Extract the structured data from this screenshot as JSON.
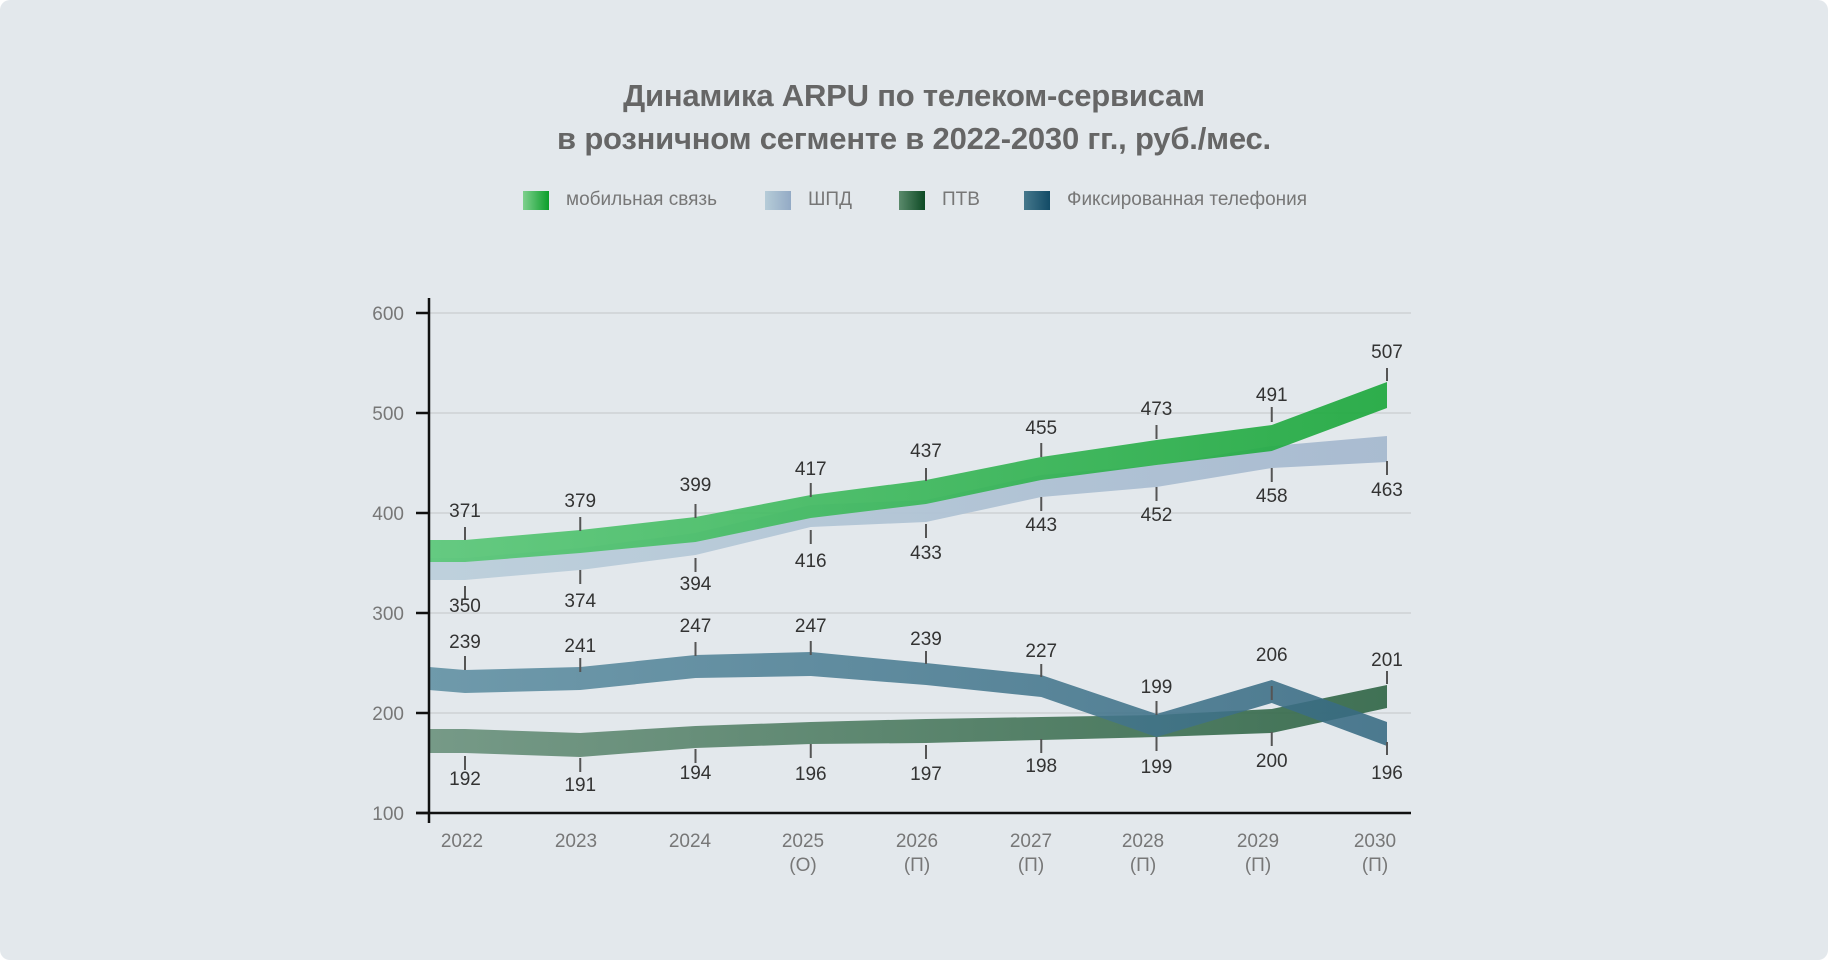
{
  "chart_data": {
    "type": "line",
    "title": "Динамика ARPU по телеком-сервисам\nв розничном сегменте в 2022-2030 гг., руб./мес.",
    "title_lines": [
      "Динамика ARPU по телеком-сервисам",
      "в розничном сегменте в 2022-2030 гг., руб./мес."
    ],
    "xlabel": "",
    "ylabel": "",
    "ylim": [
      100,
      600
    ],
    "yticks": [
      "100",
      "200",
      "300",
      "400",
      "500",
      "600"
    ],
    "grid": true,
    "legend_position": "top-center",
    "categories": [
      "2022",
      "2023",
      "2024",
      "2025",
      "2026",
      "2027",
      "2028",
      "2029",
      "2030"
    ],
    "category_sublabels": [
      "",
      "",
      "",
      "(О)",
      "(П)",
      "(П)",
      "(П)",
      "(П)",
      "(П)"
    ],
    "series": [
      {
        "name": "мобильная связь",
        "colors": [
          "#5ac778",
          "#1ea83e"
        ],
        "legend_gradient": [
          "#7fd08e",
          "#0b9e2a"
        ],
        "values": [
          371,
          379,
          399,
          417,
          437,
          455,
          473,
          491,
          507
        ],
        "label_side": "above"
      },
      {
        "name": "ШПД",
        "colors": [
          "#bccfdb",
          "#a6b9cf"
        ],
        "legend_gradient": [
          "#b6ccd8",
          "#93aac5"
        ],
        "values": [
          350,
          374,
          394,
          416,
          433,
          443,
          452,
          458,
          463
        ],
        "label_side": "below"
      },
      {
        "name": "ПТВ",
        "colors": [
          "#6a917c",
          "#2e6444"
        ],
        "legend_gradient": [
          "#5b8a6c",
          "#0d4a24"
        ],
        "values": [
          192,
          191,
          194,
          196,
          197,
          198,
          199,
          200,
          201
        ],
        "label_side": "below_then_above_last"
      },
      {
        "name": "Фиксированная телефония",
        "colors": [
          "#5f8fa2",
          "#376a82"
        ],
        "legend_gradient": [
          "#46788c",
          "#124b66"
        ],
        "values": [
          239,
          241,
          247,
          247,
          239,
          227,
          199,
          206,
          196
        ],
        "label_side": "above_then_below_last"
      }
    ]
  }
}
